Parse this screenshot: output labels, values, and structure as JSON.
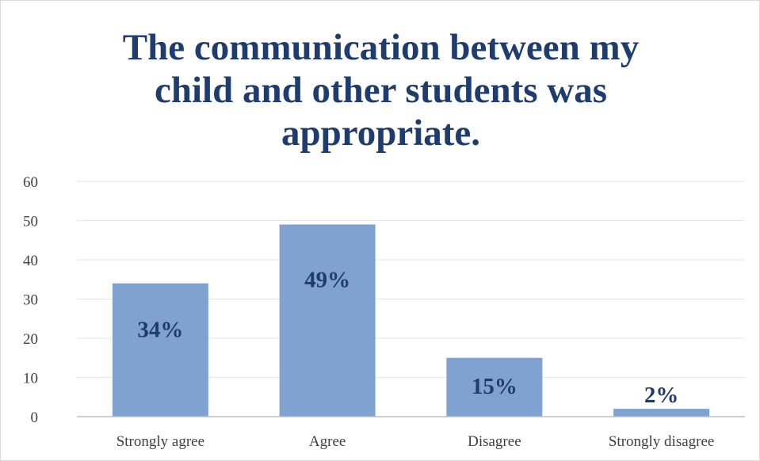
{
  "chart_data": {
    "type": "bar",
    "title_lines": [
      "The communication between my",
      "child and other students was",
      "appropriate."
    ],
    "categories": [
      "Strongly agree",
      "Agree",
      "Disagree",
      "Strongly disagree"
    ],
    "values": [
      34,
      49,
      15,
      2
    ],
    "data_labels": [
      "34%",
      "49%",
      "15%",
      "2%"
    ],
    "y_ticks": [
      "0",
      "10",
      "20",
      "30",
      "40",
      "50",
      "60"
    ],
    "ylim": [
      0,
      60
    ],
    "grid": true,
    "legend": "none",
    "xlabel": "",
    "ylabel": "",
    "colors": {
      "bar": "#7fa2d0",
      "title": "#1f3c6e",
      "data_label": "#1f3c6e",
      "axis_text": "#404040",
      "grid": "#e6e6e6",
      "axis_line": "#bfbfbf"
    }
  }
}
